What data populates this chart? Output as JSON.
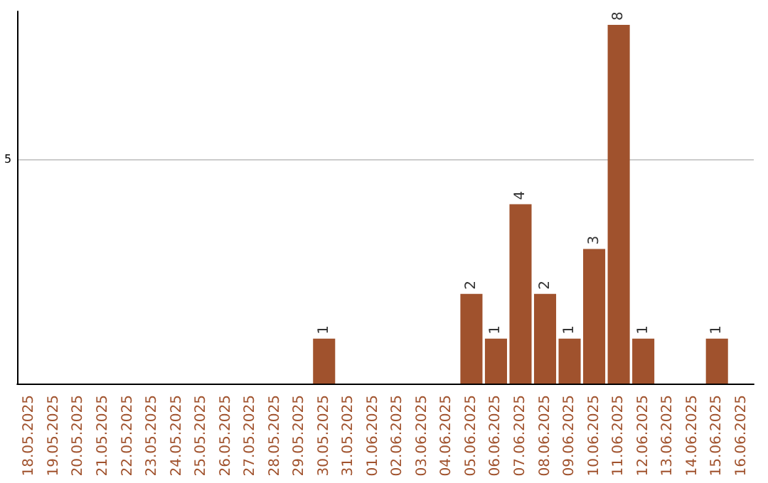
{
  "chart_data": {
    "type": "bar",
    "categories": [
      "18.05.2025",
      "19.05.2025",
      "20.05.2025",
      "21.05.2025",
      "22.05.2025",
      "23.05.2025",
      "24.05.2025",
      "25.05.2025",
      "26.05.2025",
      "27.05.2025",
      "28.05.2025",
      "29.05.2025",
      "30.05.2025",
      "31.05.2025",
      "01.06.2025",
      "02.06.2025",
      "03.06.2025",
      "04.06.2025",
      "05.06.2025",
      "06.06.2025",
      "07.06.2025",
      "08.06.2025",
      "09.06.2025",
      "10.06.2025",
      "11.06.2025",
      "12.06.2025",
      "13.06.2025",
      "14.06.2025",
      "15.06.2025",
      "16.06.2025"
    ],
    "values": [
      null,
      null,
      null,
      null,
      null,
      null,
      null,
      null,
      null,
      null,
      null,
      null,
      1,
      null,
      null,
      null,
      null,
      null,
      2,
      1,
      4,
      2,
      1,
      3,
      8,
      1,
      null,
      null,
      1,
      null
    ],
    "data_labels": true,
    "color": "#a0522d",
    "ylim": [
      0,
      8.3
    ],
    "yticks": [
      {
        "value": 0,
        "label": null
      },
      5
    ],
    "grid": "y"
  }
}
